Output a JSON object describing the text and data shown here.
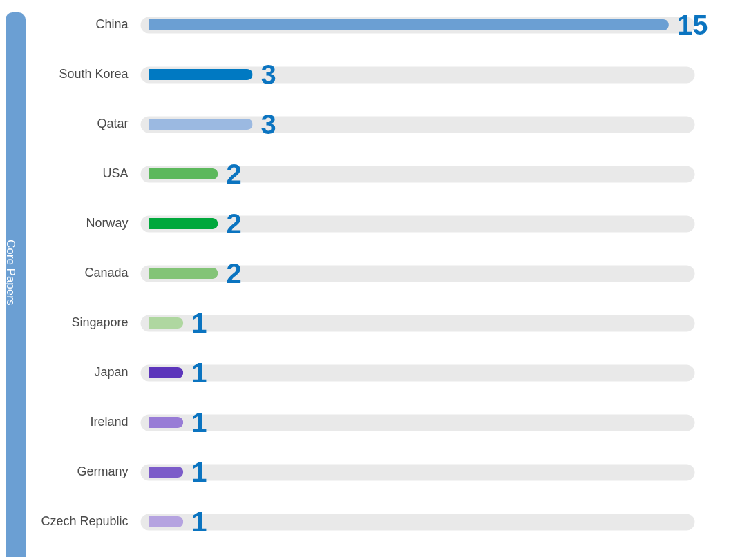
{
  "chart_data": {
    "type": "bar",
    "orientation": "horizontal",
    "ylabel": "Core Papers",
    "categories": [
      "China",
      "South Korea",
      "Qatar",
      "USA",
      "Norway",
      "Canada",
      "Singapore",
      "Japan",
      "Ireland",
      "Germany",
      "Czech Republic"
    ],
    "values": [
      15,
      3,
      3,
      2,
      2,
      2,
      1,
      1,
      1,
      1,
      1
    ],
    "colors": [
      "#6b9fd3",
      "#0079c2",
      "#9bb9e1",
      "#5cb85c",
      "#00a83c",
      "#83c477",
      "#afd7a0",
      "#5c35bb",
      "#987cd6",
      "#7c5cc9",
      "#b5a3e0"
    ],
    "xlim": [
      0,
      15.5
    ],
    "data_labels": true,
    "tick_labels": "y",
    "grid": "y"
  }
}
